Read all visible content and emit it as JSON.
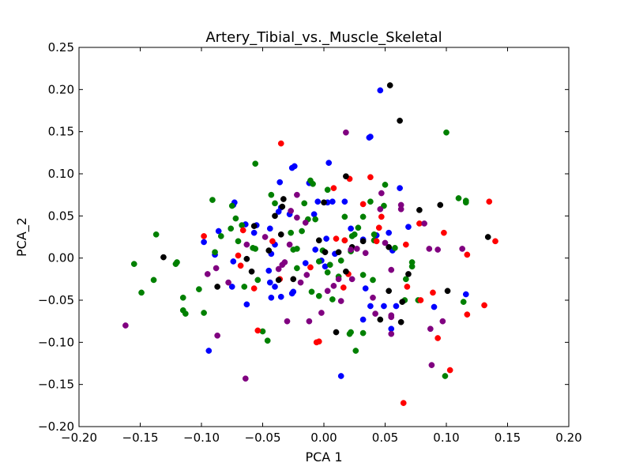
{
  "chart_data": {
    "type": "scatter",
    "title": "Artery_Tibial_vs._Muscle_Skeletal",
    "xlabel": "PCA 1",
    "ylabel": "PCA_2",
    "xlim": [
      -0.2,
      0.2
    ],
    "ylim": [
      -0.2,
      0.25
    ],
    "x_ticks": [
      -0.2,
      -0.15,
      -0.1,
      -0.05,
      0.0,
      0.05,
      0.1,
      0.15,
      0.2
    ],
    "x_tick_labels": [
      "−0.20",
      "−0.15",
      "−0.10",
      "−0.05",
      "0.00",
      "0.05",
      "0.10",
      "0.15",
      "0.20"
    ],
    "y_ticks": [
      -0.2,
      -0.15,
      -0.1,
      -0.05,
      0.0,
      0.05,
      0.1,
      0.15,
      0.2,
      0.25
    ],
    "y_tick_labels": [
      "−0.20",
      "−0.15",
      "−0.10",
      "−0.05",
      "0.00",
      "0.05",
      "0.10",
      "0.15",
      "0.20",
      "0.25"
    ],
    "grid": false,
    "legend": false,
    "colors": {
      "red": "#ff0000",
      "green": "#008000",
      "blue": "#0000ff",
      "black": "#000000",
      "purple": "#800080"
    },
    "series": [
      {
        "color": "#0000ff",
        "points": [
          [
            0.046,
            0.199
          ],
          [
            0.037,
            0.143
          ],
          [
            0.038,
            0.144
          ],
          [
            -0.026,
            0.107
          ],
          [
            -0.024,
            0.109
          ],
          [
            0.004,
            0.113
          ],
          [
            -0.036,
            0.09
          ],
          [
            -0.074,
            0.063
          ],
          [
            -0.073,
            0.066
          ],
          [
            -0.086,
            0.032
          ],
          [
            -0.098,
            0.019
          ],
          [
            -0.089,
            0.004
          ],
          [
            -0.074,
            -0.004
          ],
          [
            -0.075,
            -0.034
          ],
          [
            -0.064,
            0.04
          ],
          [
            -0.055,
            0.039
          ],
          [
            -0.044,
            0.035
          ],
          [
            -0.037,
            0.055
          ],
          [
            -0.035,
            0.06
          ],
          [
            -0.028,
            0.052
          ],
          [
            -0.04,
            0.016
          ],
          [
            -0.043,
            0.005
          ],
          [
            -0.057,
            0.03
          ],
          [
            -0.045,
            -0.015
          ],
          [
            -0.044,
            -0.029
          ],
          [
            -0.04,
            -0.034
          ],
          [
            -0.026,
            -0.042
          ],
          [
            -0.025,
            -0.04
          ],
          [
            -0.015,
            -0.006
          ],
          [
            -0.007,
            0.01
          ],
          [
            -0.008,
            0.052
          ],
          [
            -0.005,
            0.067
          ],
          [
            0.003,
            0.066
          ],
          [
            0.007,
            0.067
          ],
          [
            0.017,
            0.067
          ],
          [
            0.002,
            0.023
          ],
          [
            0.009,
            0.005
          ],
          [
            0.001,
            -0.01
          ],
          [
            0.022,
            0.035
          ],
          [
            0.032,
            0.022
          ],
          [
            0.043,
            0.027
          ],
          [
            0.053,
            0.03
          ],
          [
            0.062,
            0.083
          ],
          [
            0.056,
            0.009
          ],
          [
            0.069,
            0.037
          ],
          [
            0.034,
            -0.036
          ],
          [
            0.032,
            -0.073
          ],
          [
            0.038,
            -0.057
          ],
          [
            0.055,
            -0.084
          ],
          [
            0.059,
            -0.057
          ],
          [
            0.09,
            -0.058
          ],
          [
            0.116,
            -0.043
          ],
          [
            0.014,
            -0.14
          ],
          [
            -0.094,
            -0.11
          ],
          [
            -0.063,
            -0.055
          ],
          [
            -0.043,
            -0.047
          ],
          [
            -0.035,
            -0.046
          ],
          [
            0.049,
            -0.057
          ],
          [
            -0.012,
            0.089
          ],
          [
            -0.002,
            -0.003
          ]
        ]
      },
      {
        "color": "#008000",
        "points": [
          [
            0.1,
            0.149
          ],
          [
            -0.056,
            0.112
          ],
          [
            0.11,
            0.071
          ],
          [
            0.116,
            0.066
          ],
          [
            0.116,
            0.068
          ],
          [
            -0.091,
            0.069
          ],
          [
            -0.075,
            0.062
          ],
          [
            -0.072,
            0.047
          ],
          [
            -0.067,
            0.039
          ],
          [
            -0.137,
            0.028
          ],
          [
            -0.155,
            -0.007
          ],
          [
            -0.139,
            -0.026
          ],
          [
            -0.149,
            -0.041
          ],
          [
            -0.121,
            -0.007
          ],
          [
            -0.12,
            -0.005
          ],
          [
            -0.115,
            -0.047
          ],
          [
            -0.115,
            -0.062
          ],
          [
            -0.113,
            -0.066
          ],
          [
            -0.102,
            -0.037
          ],
          [
            -0.098,
            -0.065
          ],
          [
            -0.089,
            0.007
          ],
          [
            -0.084,
            0.026
          ],
          [
            -0.076,
            0.035
          ],
          [
            -0.07,
            0.02
          ],
          [
            -0.065,
            -0.034
          ],
          [
            -0.058,
            0.012
          ],
          [
            -0.056,
            0.011
          ],
          [
            -0.054,
            -0.026
          ],
          [
            -0.05,
            -0.087
          ],
          [
            -0.046,
            -0.098
          ],
          [
            -0.043,
            0.075
          ],
          [
            -0.04,
            0.065
          ],
          [
            -0.027,
            0.03
          ],
          [
            -0.025,
            0.01
          ],
          [
            -0.022,
            0.011
          ],
          [
            -0.018,
            0.032
          ],
          [
            -0.013,
            0.046
          ],
          [
            -0.016,
            0.065
          ],
          [
            -0.011,
            0.092
          ],
          [
            -0.009,
            0.088
          ],
          [
            -0.007,
            0.046
          ],
          [
            -0.004,
            -0.004
          ],
          [
            -0.001,
            0.009
          ],
          [
            0.003,
            0.081
          ],
          [
            0.003,
            -0.017
          ],
          [
            0.005,
            -0.008
          ],
          [
            0.007,
            -0.049
          ],
          [
            0.014,
            -0.003
          ],
          [
            0.017,
            0.021
          ],
          [
            0.017,
            0.049
          ],
          [
            0.022,
            0.008
          ],
          [
            0.023,
            0.026
          ],
          [
            0.025,
            0.028
          ],
          [
            0.028,
            0.036
          ],
          [
            0.032,
            -0.02
          ],
          [
            0.032,
            0.049
          ],
          [
            0.038,
            0.067
          ],
          [
            0.041,
            0.028
          ],
          [
            0.041,
            0.021
          ],
          [
            0.049,
            0.062
          ],
          [
            0.05,
            0.087
          ],
          [
            0.058,
            0.012
          ],
          [
            0.072,
            -0.005
          ],
          [
            0.072,
            -0.01
          ],
          [
            0.067,
            -0.025
          ],
          [
            0.066,
            -0.05
          ],
          [
            0.077,
            -0.05
          ],
          [
            0.114,
            -0.052
          ],
          [
            0.099,
            -0.14
          ],
          [
            0.022,
            -0.088
          ],
          [
            0.021,
            -0.09
          ],
          [
            0.026,
            -0.11
          ],
          [
            0.032,
            -0.089
          ],
          [
            -0.022,
            -0.012
          ],
          [
            0.012,
            -0.022
          ],
          [
            -0.01,
            -0.04
          ],
          [
            -0.004,
            -0.045
          ],
          [
            0.04,
            -0.026
          ]
        ]
      },
      {
        "color": "#ff0000",
        "points": [
          [
            -0.035,
            0.136
          ],
          [
            -0.07,
            0.003
          ],
          [
            0.021,
            0.094
          ],
          [
            0.038,
            0.096
          ],
          [
            0.008,
            0.083
          ],
          [
            0.032,
            0.064
          ],
          [
            -0.098,
            0.026
          ],
          [
            -0.066,
            0.033
          ],
          [
            -0.042,
            0.02
          ],
          [
            -0.068,
            -0.009
          ],
          [
            -0.057,
            -0.036
          ],
          [
            -0.036,
            -0.025
          ],
          [
            -0.011,
            -0.011
          ],
          [
            0.017,
            0.021
          ],
          [
            0.02,
            -0.019
          ],
          [
            0.016,
            -0.035
          ],
          [
            -0.006,
            -0.1
          ],
          [
            -0.004,
            -0.099
          ],
          [
            -0.054,
            -0.086
          ],
          [
            0.065,
            -0.172
          ],
          [
            0.093,
            -0.095
          ],
          [
            0.103,
            -0.133
          ],
          [
            0.117,
            -0.067
          ],
          [
            0.131,
            -0.056
          ],
          [
            0.117,
            0.004
          ],
          [
            0.135,
            0.067
          ],
          [
            0.14,
            0.02
          ],
          [
            0.098,
            0.03
          ],
          [
            0.078,
            0.041
          ],
          [
            0.067,
            0.016
          ],
          [
            0.068,
            -0.034
          ],
          [
            0.079,
            -0.05
          ],
          [
            0.089,
            -0.041
          ],
          [
            0.043,
            0.02
          ],
          [
            0.045,
            0.036
          ],
          [
            0.047,
            0.049
          ],
          [
            0.01,
            0.023
          ]
        ]
      },
      {
        "color": "#000000",
        "points": [
          [
            0.054,
            0.205
          ],
          [
            0.062,
            0.163
          ],
          [
            0.018,
            0.097
          ],
          [
            0.0,
            0.066
          ],
          [
            -0.033,
            0.07
          ],
          [
            -0.034,
            0.061
          ],
          [
            -0.04,
            0.05
          ],
          [
            -0.035,
            0.028
          ],
          [
            -0.057,
            0.038
          ],
          [
            -0.045,
            0.009
          ],
          [
            -0.059,
            -0.016
          ],
          [
            -0.063,
            -0.001
          ],
          [
            -0.087,
            -0.034
          ],
          [
            -0.131,
            0.001
          ],
          [
            -0.037,
            -0.026
          ],
          [
            -0.025,
            -0.025
          ],
          [
            -0.004,
            0.021
          ],
          [
            0.001,
            0.007
          ],
          [
            0.012,
            0.007
          ],
          [
            0.018,
            -0.016
          ],
          [
            0.023,
            0.013
          ],
          [
            0.032,
            0.02
          ],
          [
            0.053,
            0.013
          ],
          [
            0.053,
            -0.039
          ],
          [
            0.01,
            -0.088
          ],
          [
            0.046,
            -0.073
          ],
          [
            0.063,
            -0.076
          ],
          [
            0.064,
            -0.052
          ],
          [
            0.078,
            0.057
          ],
          [
            0.095,
            0.063
          ],
          [
            0.134,
            0.025
          ],
          [
            0.101,
            -0.039
          ],
          [
            0.069,
            -0.019
          ]
        ]
      },
      {
        "color": "#800080",
        "points": [
          [
            0.018,
            0.149
          ],
          [
            0.047,
            0.077
          ],
          [
            0.046,
            0.058
          ],
          [
            0.05,
            0.018
          ],
          [
            -0.022,
            0.075
          ],
          [
            -0.027,
            0.056
          ],
          [
            -0.015,
            0.042
          ],
          [
            -0.022,
            0.048
          ],
          [
            -0.048,
            0.025
          ],
          [
            -0.028,
            0.016
          ],
          [
            -0.034,
            -0.008
          ],
          [
            -0.037,
            -0.013
          ],
          [
            -0.019,
            -0.029
          ],
          [
            -0.014,
            -0.02
          ],
          [
            0.022,
            0.01
          ],
          [
            0.023,
            -0.025
          ],
          [
            0.027,
            0.011
          ],
          [
            0.012,
            -0.025
          ],
          [
            0.008,
            -0.033
          ],
          [
            0.003,
            -0.039
          ],
          [
            0.014,
            -0.051
          ],
          [
            0.04,
            -0.047
          ],
          [
            0.042,
            -0.066
          ],
          [
            0.055,
            -0.014
          ],
          [
            0.055,
            -0.068
          ],
          [
            0.055,
            -0.07
          ],
          [
            0.086,
            0.011
          ],
          [
            0.093,
            0.01
          ],
          [
            0.113,
            0.011
          ],
          [
            0.082,
            0.041
          ],
          [
            0.063,
            0.058
          ],
          [
            0.063,
            0.063
          ],
          [
            0.087,
            -0.084
          ],
          [
            0.097,
            -0.075
          ],
          [
            0.088,
            -0.127
          ],
          [
            -0.087,
            -0.092
          ],
          [
            -0.064,
            -0.143
          ],
          [
            -0.095,
            -0.019
          ],
          [
            -0.088,
            -0.012
          ],
          [
            -0.078,
            -0.029
          ],
          [
            -0.032,
            -0.005
          ],
          [
            -0.012,
            -0.075
          ],
          [
            -0.03,
            -0.075
          ],
          [
            -0.063,
            0.016
          ],
          [
            0.034,
            0.006
          ],
          [
            -0.002,
            -0.065
          ],
          [
            -0.162,
            -0.08
          ],
          [
            0.055,
            -0.09
          ]
        ]
      }
    ]
  }
}
